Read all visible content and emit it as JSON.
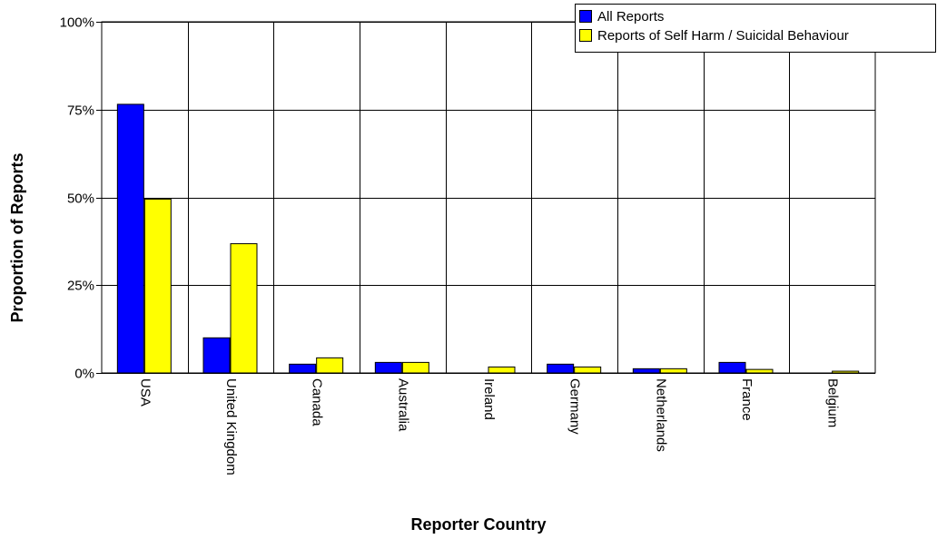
{
  "chart_data": {
    "type": "bar",
    "categories": [
      "USA",
      "United Kingdom",
      "Canada",
      "Australia",
      "Ireland",
      "Germany",
      "Netherlands",
      "France",
      "Belgium"
    ],
    "series": [
      {
        "name": "All Reports",
        "color": "#0000ff",
        "values": [
          76.5,
          10.0,
          2.5,
          3.0,
          0.0,
          2.5,
          1.2,
          3.0,
          0.0
        ]
      },
      {
        "name": "Reports of Self Harm / Suicidal Behaviour",
        "color": "#ffff00",
        "values": [
          49.5,
          36.8,
          4.3,
          3.0,
          1.7,
          1.7,
          1.2,
          1.0,
          0.5
        ]
      }
    ],
    "yticks": [
      "0%",
      "25%",
      "50%",
      "75%",
      "100%"
    ],
    "ylim": [
      0,
      100
    ],
    "xlabel": "Reporter Country",
    "ylabel": "Proportion of Reports",
    "grid": true,
    "legend_position": "top-right"
  }
}
